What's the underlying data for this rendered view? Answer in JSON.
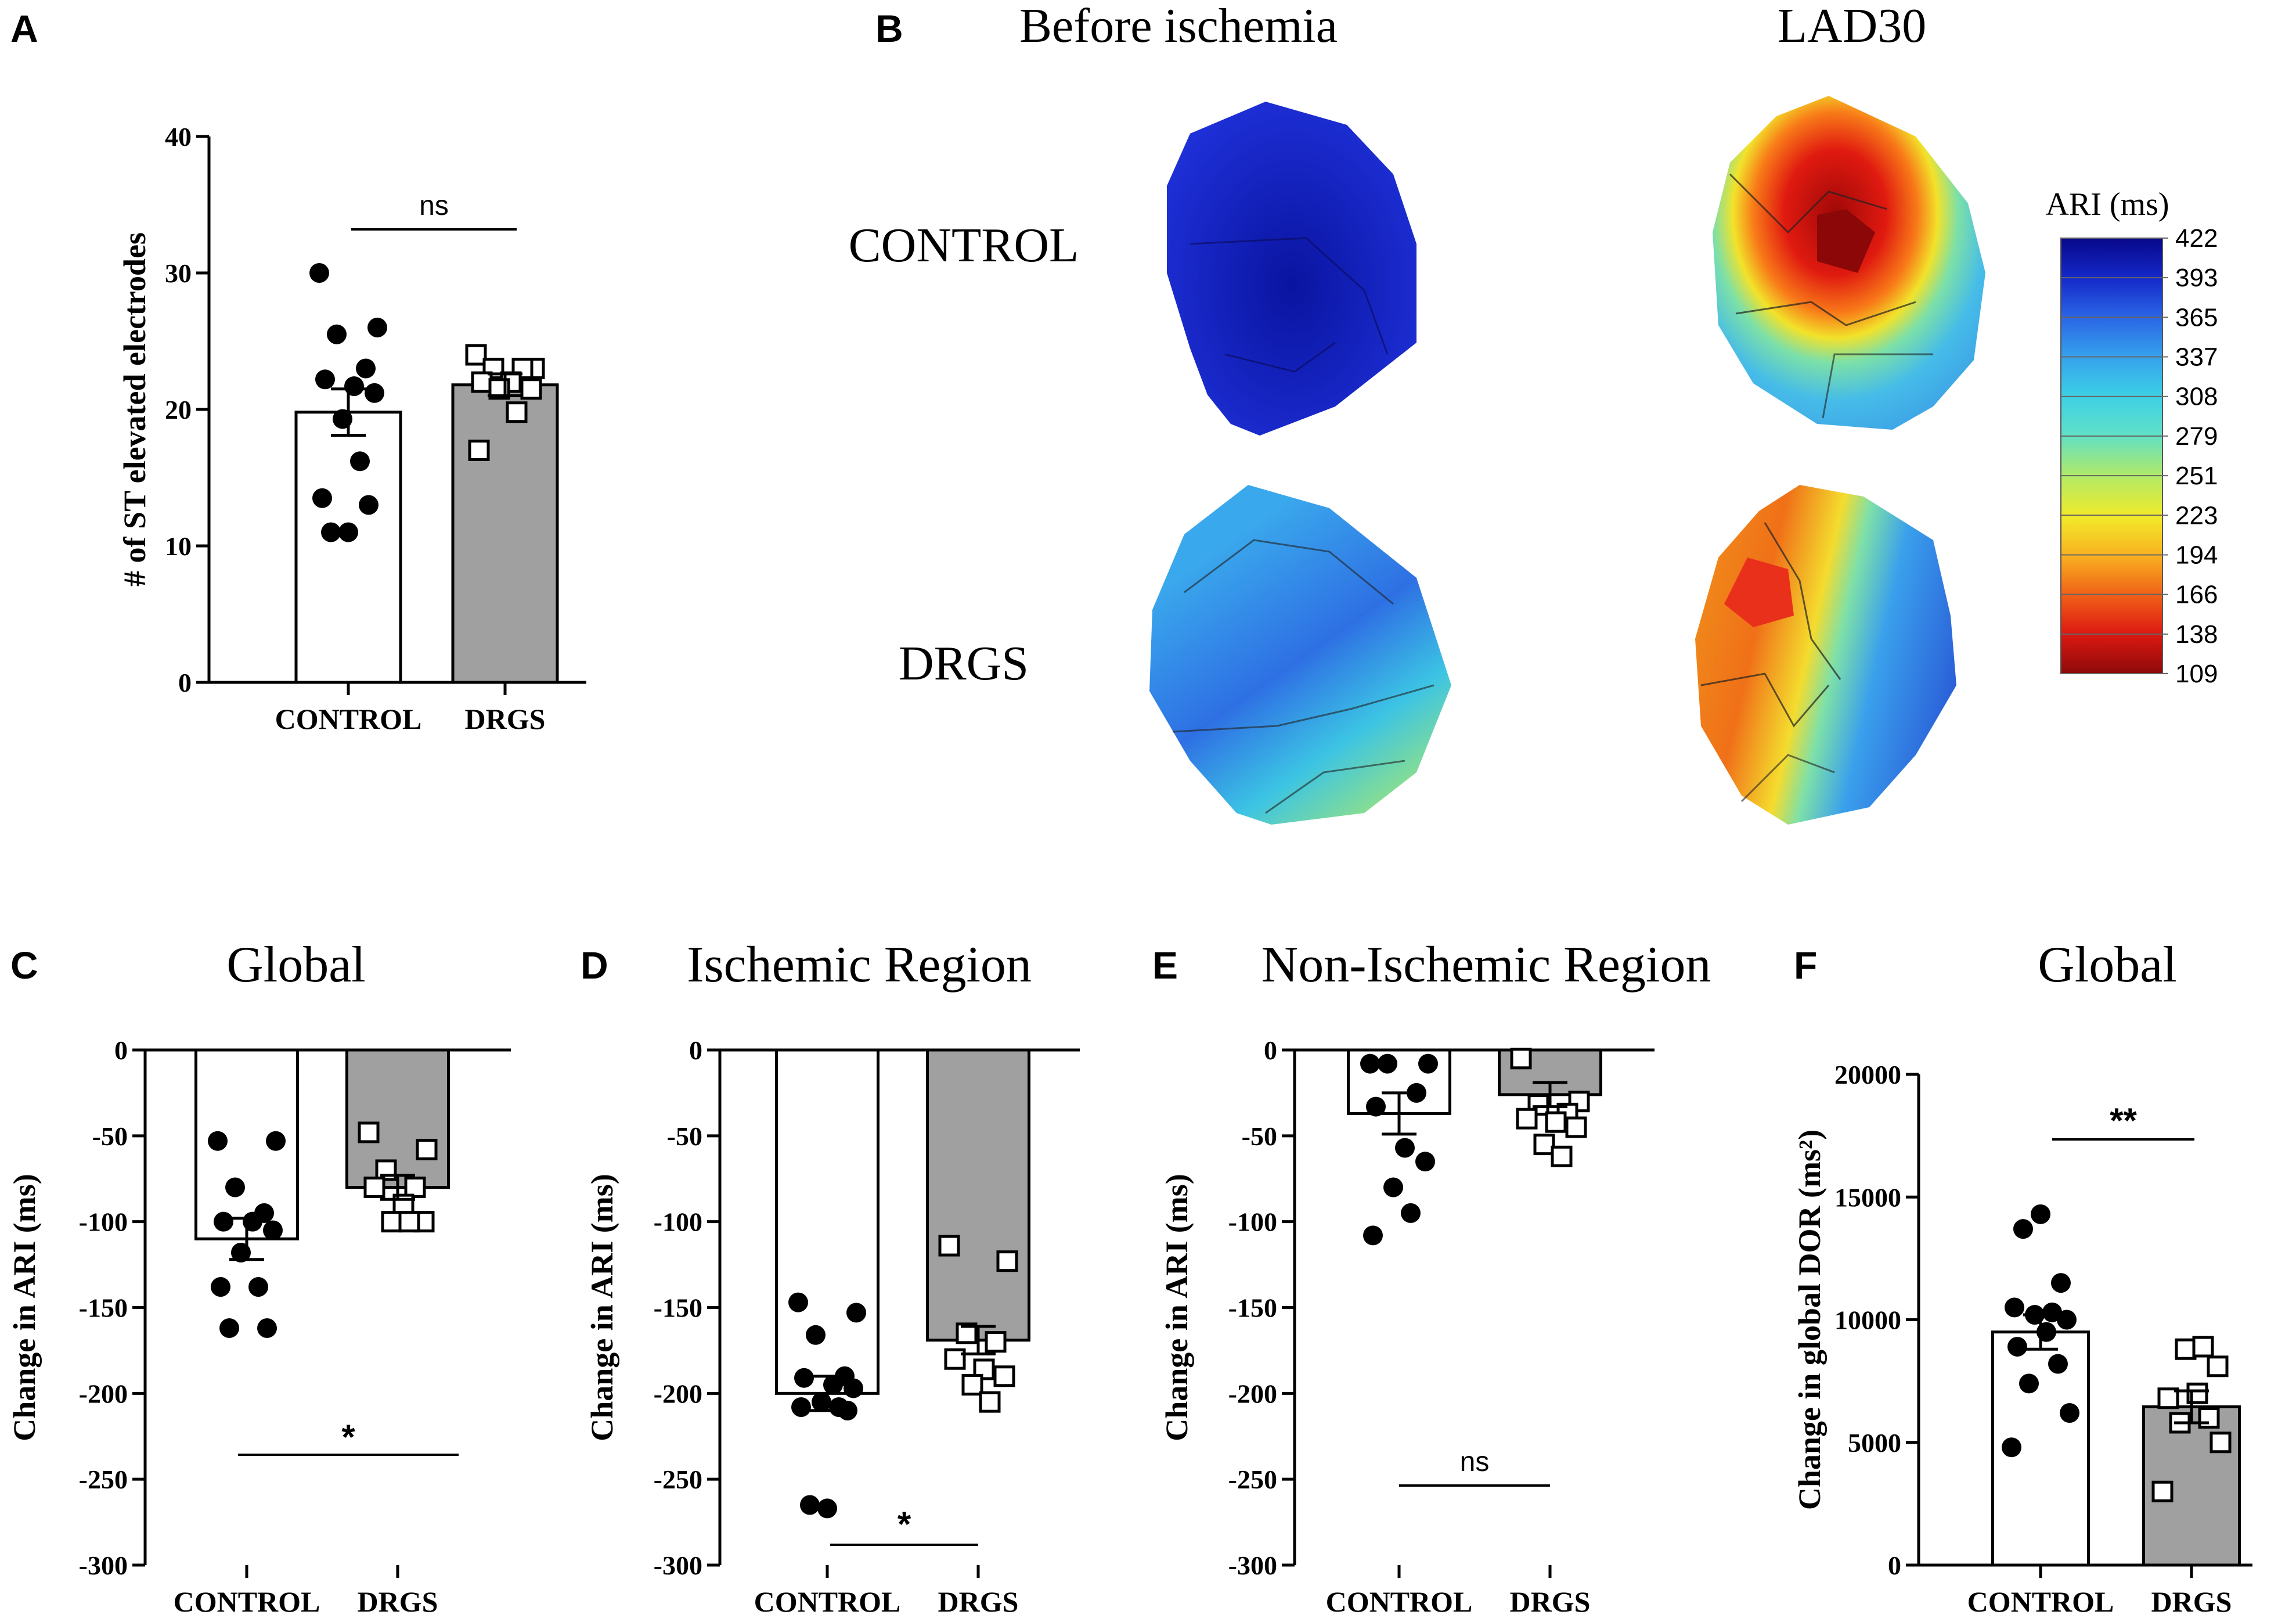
{
  "panel_labels": [
    "A",
    "B",
    "C",
    "D",
    "E",
    "F"
  ],
  "colors": {
    "bar_control": "#ffffff",
    "bar_drgs": "#a0a0a0",
    "stroke": "#000000"
  },
  "heatmap": {
    "col_titles": [
      "Before ischemia",
      "LAD30"
    ],
    "row_labels": [
      "CONTROL",
      "DRGS"
    ],
    "colorbar": {
      "title": "ARI (ms)",
      "ticks": [
        "422",
        "393",
        "365",
        "337",
        "308",
        "279",
        "251",
        "223",
        "194",
        "166",
        "138",
        "109"
      ],
      "colors": [
        "#08088a",
        "#1428c8",
        "#2a64e6",
        "#35a0ec",
        "#3ccfe6",
        "#5fe0c8",
        "#b4ea64",
        "#f2ea2a",
        "#f8b020",
        "#f06018",
        "#dc1812",
        "#8c0a0a"
      ]
    }
  },
  "chart_data": [
    {
      "id": "A",
      "type": "bar",
      "title": "",
      "categories": [
        "CONTROL",
        "DRGS"
      ],
      "ylabel": "# of ST elevated electrodes",
      "xlabel": "",
      "ylim": [
        0,
        40
      ],
      "yticks": [
        0,
        10,
        20,
        30,
        40
      ],
      "means": [
        19.8,
        21.8
      ],
      "sem": [
        1.7,
        0.8
      ],
      "points": [
        [
          30,
          26,
          25.5,
          23,
          22.2,
          21.7,
          21.2,
          19.3,
          16.2,
          13.5,
          13,
          11,
          11
        ],
        [
          24,
          23,
          23,
          23,
          22,
          22,
          21.5,
          21.5,
          19.8,
          17
        ]
      ],
      "significance": "ns"
    },
    {
      "id": "C",
      "type": "bar",
      "title": "Global",
      "categories": [
        "CONTROL",
        "DRGS"
      ],
      "ylabel": "Change in ARI (ms)",
      "xlabel": "",
      "ylim": [
        -300,
        0
      ],
      "yticks": [
        0,
        -50,
        -100,
        -150,
        -200,
        -250,
        -300
      ],
      "means": [
        -110,
        -80
      ],
      "sem": [
        12,
        7
      ],
      "points": [
        [
          -53,
          -53,
          -80,
          -95,
          -100,
          -100,
          -105,
          -118,
          -138,
          -138,
          -162,
          -162
        ],
        [
          -48,
          -58,
          -70,
          -80,
          -80,
          -90,
          -100,
          -100,
          -100
        ]
      ],
      "significance": "*"
    },
    {
      "id": "D",
      "type": "bar",
      "title": "Ischemic Region",
      "categories": [
        "CONTROL",
        "DRGS"
      ],
      "ylabel": "Change in ARI (ms)",
      "xlabel": "",
      "ylim": [
        -300,
        0
      ],
      "yticks": [
        0,
        -50,
        -100,
        -150,
        -200,
        -250,
        -300
      ],
      "means": [
        -200,
        -169
      ],
      "sem": [
        10,
        8
      ],
      "points": [
        [
          -147,
          -153,
          -166,
          -190,
          -191,
          -195,
          -197,
          -205,
          -208,
          -208,
          -210,
          -265,
          -267
        ],
        [
          -114,
          -123,
          -165,
          -170,
          -180,
          -186,
          -190,
          -195,
          -205
        ]
      ],
      "significance": "*"
    },
    {
      "id": "E",
      "type": "bar",
      "title": "Non-Ischemic Region",
      "categories": [
        "CONTROL",
        "DRGS"
      ],
      "ylabel": "Change in ARI (ms)",
      "xlabel": "",
      "ylim": [
        -300,
        0
      ],
      "yticks": [
        0,
        -50,
        -100,
        -150,
        -200,
        -250,
        -300
      ],
      "means": [
        -37,
        -26
      ],
      "sem": [
        12,
        7
      ],
      "points": [
        [
          -8,
          -8,
          -8,
          -25,
          -33,
          -57,
          -65,
          -80,
          -95,
          -108
        ],
        [
          -5,
          -30,
          -32,
          -37,
          -40,
          -42,
          -45,
          -55,
          -62
        ]
      ],
      "significance": "ns"
    },
    {
      "id": "F",
      "type": "bar",
      "title": "Global",
      "categories": [
        "CONTROL",
        "DRGS"
      ],
      "ylabel": "Change in global DOR (ms²)",
      "xlabel": "",
      "ylim": [
        0,
        20000
      ],
      "yticks": [
        0,
        5000,
        10000,
        15000,
        20000
      ],
      "means": [
        9500,
        6450
      ],
      "sem": [
        700,
        650
      ],
      "points": [
        [
          4800,
          6200,
          7400,
          8200,
          8900,
          9500,
          10000,
          10200,
          10300,
          10500,
          11500,
          13700,
          14300
        ],
        [
          3000,
          5000,
          5800,
          6000,
          6800,
          7000,
          8100,
          8800,
          8900
        ]
      ],
      "significance": "**"
    }
  ]
}
